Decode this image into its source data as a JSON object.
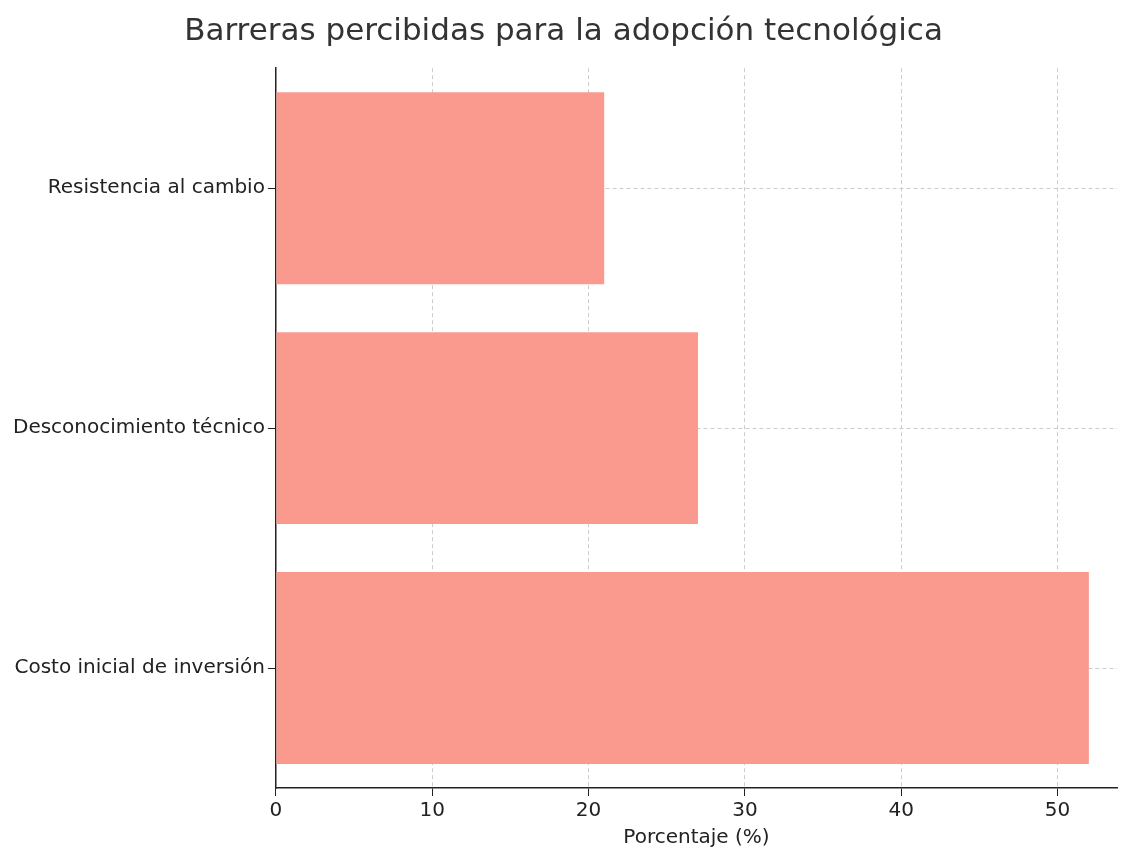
{
  "chart_data": {
    "type": "bar",
    "orientation": "horizontal",
    "title": "Barreras percibidas para la adopción tecnológica",
    "xlabel": "Porcentaje (%)",
    "categories": [
      "Resistencia al cambio",
      "Desconocimiento técnico",
      "Costo inicial de inversión"
    ],
    "values": [
      21,
      27,
      52
    ],
    "color": "#fa9a8e",
    "xlim": [
      0,
      53.8
    ],
    "xticks": [
      0,
      10,
      20,
      30,
      40,
      50
    ],
    "grid": true
  }
}
